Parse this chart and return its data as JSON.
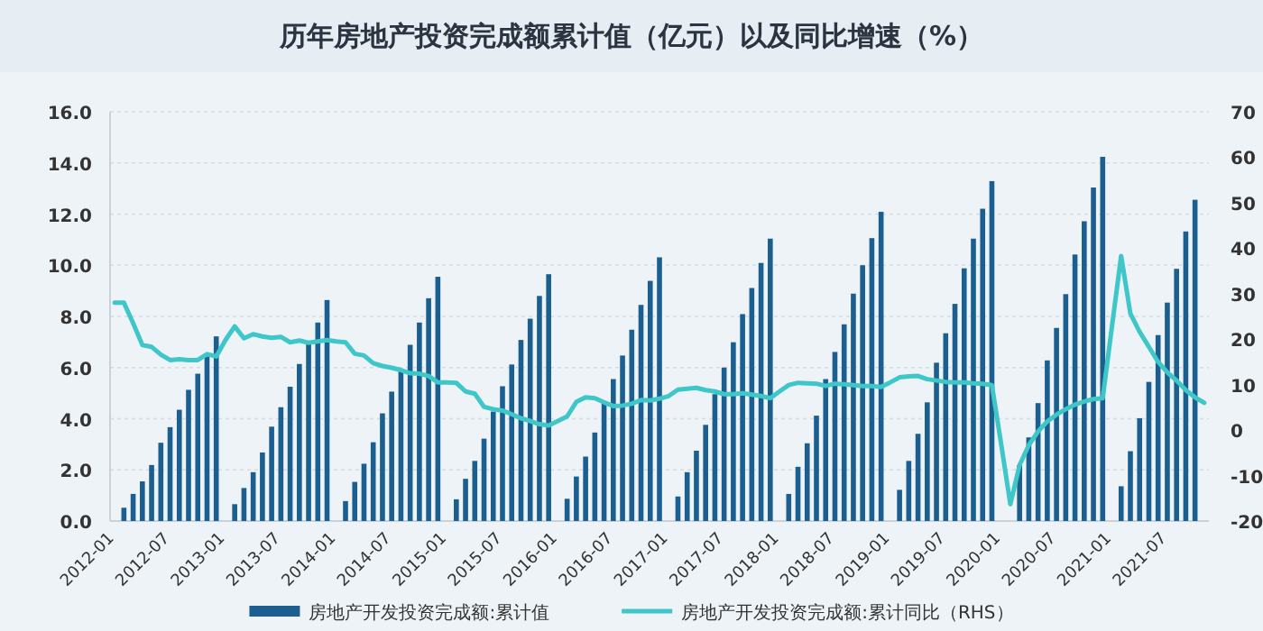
{
  "chart_data": {
    "type": "bar",
    "title": "历年房地产投资完成额累计值（亿元）以及同比增速（%）",
    "categories": [
      "2012-01",
      null,
      null,
      null,
      null,
      null,
      "2012-07",
      null,
      null,
      null,
      null,
      null,
      "2013-01",
      null,
      null,
      null,
      null,
      null,
      "2013-07",
      null,
      null,
      null,
      null,
      null,
      "2014-01",
      null,
      null,
      null,
      null,
      null,
      "2014-07",
      null,
      null,
      null,
      null,
      null,
      "2015-01",
      null,
      null,
      null,
      null,
      null,
      "2015-07",
      null,
      null,
      null,
      null,
      null,
      "2016-01",
      null,
      null,
      null,
      null,
      null,
      "2016-07",
      null,
      null,
      null,
      null,
      null,
      "2017-01",
      null,
      null,
      null,
      null,
      null,
      "2017-07",
      null,
      null,
      null,
      null,
      null,
      "2018-01",
      null,
      null,
      null,
      null,
      null,
      "2018-07",
      null,
      null,
      null,
      null,
      null,
      "2019-01",
      null,
      null,
      null,
      null,
      null,
      "2019-07",
      null,
      null,
      null,
      null,
      null,
      "2020-01",
      null,
      null,
      null,
      null,
      null,
      "2020-07",
      null,
      null,
      null,
      null,
      null,
      "2021-01",
      null,
      null,
      null,
      null,
      null,
      "2021-07",
      null,
      null,
      null,
      null
    ],
    "series": [
      {
        "name": "房地产开发投资完成额:累计值",
        "color": "#1a5f8f",
        "values": [
          null,
          0.52,
          1.06,
          1.55,
          2.19,
          3.06,
          3.67,
          4.35,
          5.13,
          5.76,
          6.52,
          7.22,
          null,
          0.66,
          1.29,
          1.91,
          2.68,
          3.69,
          4.45,
          5.25,
          6.14,
          6.92,
          7.76,
          8.64,
          null,
          0.78,
          1.53,
          2.24,
          3.08,
          4.21,
          5.06,
          5.91,
          6.89,
          7.76,
          8.71,
          9.55,
          null,
          0.85,
          1.65,
          2.35,
          3.22,
          4.28,
          5.27,
          6.12,
          7.08,
          7.91,
          8.8,
          9.65,
          null,
          0.87,
          1.74,
          2.52,
          3.46,
          4.61,
          5.55,
          6.47,
          7.48,
          8.45,
          9.39,
          10.31,
          null,
          0.96,
          1.91,
          2.75,
          3.76,
          4.96,
          6.0,
          6.99,
          8.09,
          9.11,
          10.09,
          11.04,
          null,
          1.06,
          2.12,
          3.04,
          4.12,
          5.55,
          6.61,
          7.69,
          8.89,
          10.0,
          11.06,
          12.09,
          null,
          1.22,
          2.35,
          3.41,
          4.64,
          6.19,
          7.34,
          8.49,
          9.88,
          11.04,
          12.21,
          13.29,
          null,
          null,
          2.19,
          3.27,
          4.61,
          6.28,
          7.55,
          8.87,
          10.42,
          11.72,
          13.04,
          14.24,
          null,
          1.36,
          2.73,
          4.02,
          5.44,
          7.27,
          8.54,
          9.86,
          11.32,
          12.56,
          null
        ]
      },
      {
        "name": "房地产开发投资完成额:累计同比（RHS）",
        "type": "line",
        "axis": "y2",
        "color": "#3ec6c9",
        "values": [
          28.0,
          28.0,
          23.5,
          18.7,
          18.3,
          16.6,
          15.4,
          15.6,
          15.4,
          15.4,
          16.7,
          16.2,
          19.8,
          22.8,
          20.2,
          21.1,
          20.6,
          20.3,
          20.5,
          19.3,
          19.7,
          19.2,
          19.5,
          19.8,
          19.5,
          19.3,
          16.8,
          16.4,
          14.7,
          14.1,
          13.7,
          13.2,
          12.5,
          12.4,
          11.9,
          10.5,
          10.5,
          10.4,
          8.5,
          8.0,
          5.1,
          4.6,
          4.3,
          3.5,
          2.6,
          2.0,
          1.3,
          1.0,
          2.0,
          3.0,
          6.2,
          7.2,
          7.0,
          6.1,
          5.3,
          5.4,
          5.8,
          6.6,
          6.5,
          6.9,
          7.5,
          8.9,
          9.1,
          9.3,
          8.8,
          8.5,
          7.9,
          7.9,
          8.1,
          7.8,
          7.5,
          7.0,
          8.5,
          9.9,
          10.4,
          10.3,
          10.2,
          9.7,
          10.2,
          10.1,
          9.9,
          9.7,
          9.7,
          9.5,
          10.5,
          11.6,
          11.8,
          11.9,
          11.2,
          10.9,
          10.6,
          10.5,
          10.5,
          10.3,
          10.2,
          9.9,
          -3.0,
          -16.3,
          -7.7,
          -3.3,
          -0.3,
          1.9,
          3.4,
          4.6,
          5.6,
          6.3,
          6.8,
          7.0,
          22.7,
          38.3,
          25.6,
          21.6,
          18.3,
          15.0,
          12.7,
          10.9,
          8.8,
          7.2,
          6.0
        ]
      }
    ],
    "ylim": [
      0,
      16
    ],
    "yticks": [
      {
        "value": 0,
        "label": "0.0"
      },
      {
        "value": 2,
        "label": "2.0"
      },
      {
        "value": 4,
        "label": "4.0"
      },
      {
        "value": 6,
        "label": "6.0"
      },
      {
        "value": 8,
        "label": "8.0"
      },
      {
        "value": 10,
        "label": "10.0"
      },
      {
        "value": 12,
        "label": "12.0"
      },
      {
        "value": 14,
        "label": "14.0"
      },
      {
        "value": 16,
        "label": "16.0"
      }
    ],
    "y2lim": [
      -20,
      70
    ],
    "y2ticks": [
      -20,
      -10,
      0,
      10,
      20,
      30,
      40,
      50,
      60,
      70
    ],
    "grid": "y",
    "legend": "bottom"
  }
}
